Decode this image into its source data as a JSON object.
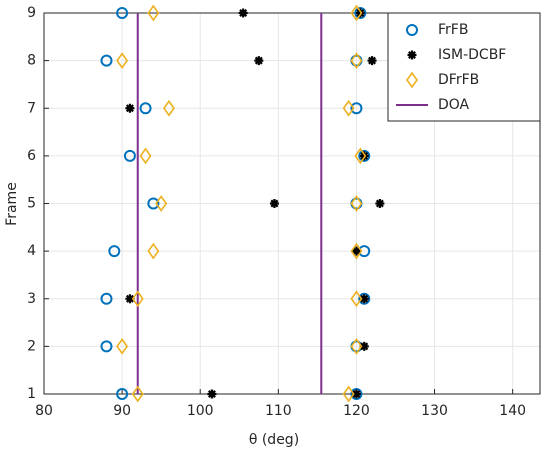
{
  "chart_data": {
    "type": "scatter",
    "xlabel": "θ (deg)",
    "ylabel": "Frame",
    "xlim": [
      80,
      143.5
    ],
    "xticks": [
      80,
      90,
      100,
      110,
      120,
      130,
      140
    ],
    "ylim": [
      1,
      9
    ],
    "yticks": [
      1,
      2,
      3,
      4,
      5,
      6,
      7,
      8,
      9
    ],
    "grid": true,
    "legend": "upper right",
    "series": [
      {
        "name": "FrFB",
        "color": "#0072bd",
        "marker": "circle",
        "x": [
          90,
          120.5,
          88,
          120,
          93,
          120,
          91,
          121,
          94,
          120,
          89,
          121,
          88,
          121,
          88,
          120,
          90,
          120
        ],
        "y": [
          9,
          9,
          8,
          8,
          7,
          7,
          6,
          6,
          5,
          5,
          4,
          4,
          3,
          3,
          2,
          2,
          1,
          1
        ]
      },
      {
        "name": "ISM-DCBF",
        "color": "#000000",
        "marker": "asterisk",
        "x": [
          105.5,
          120.5,
          107.5,
          122,
          91,
          121,
          109.5,
          123,
          120,
          91,
          121,
          121,
          101.5,
          120
        ],
        "y": [
          9,
          9,
          8,
          8,
          7,
          6,
          5,
          5,
          4,
          3,
          3,
          2,
          1,
          1
        ]
      },
      {
        "name": "DFrFB",
        "color": "#edb120",
        "marker": "diamond",
        "x": [
          94,
          120,
          90,
          120,
          96,
          119,
          93,
          120.5,
          95,
          120,
          94,
          120,
          92,
          120,
          90,
          120,
          92,
          119
        ],
        "y": [
          9,
          9,
          8,
          8,
          7,
          7,
          6,
          6,
          5,
          5,
          4,
          4,
          3,
          3,
          2,
          2,
          1,
          1
        ]
      }
    ],
    "vlines": {
      "name": "DOA",
      "color": "#7e2f8e",
      "values": [
        92,
        115.5
      ]
    }
  }
}
